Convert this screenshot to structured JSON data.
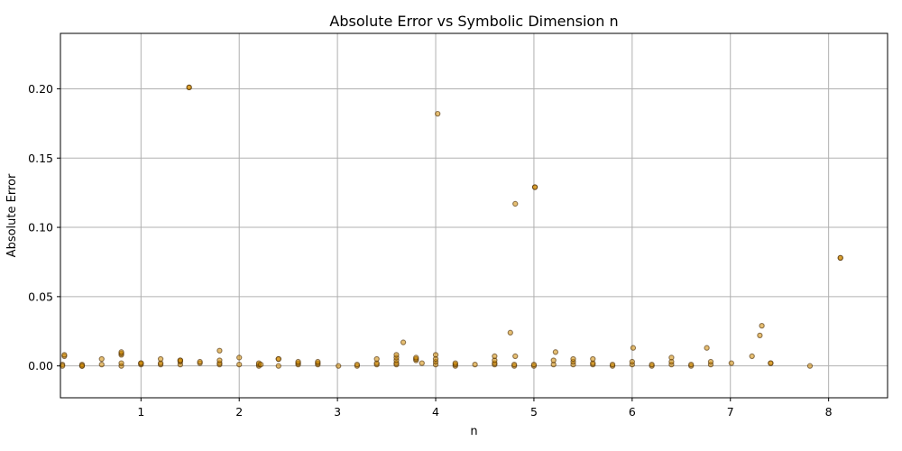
{
  "chart_data": {
    "type": "scatter",
    "title": "Absolute Error vs Symbolic Dimension n",
    "xlabel": "n",
    "ylabel": "Absolute Error",
    "xlim": [
      0.18,
      8.6
    ],
    "ylim": [
      -0.023,
      0.24
    ],
    "x_ticks": [
      1,
      2,
      3,
      4,
      5,
      6,
      7,
      8
    ],
    "x_tick_labels": [
      "1",
      "2",
      "3",
      "4",
      "5",
      "6",
      "7",
      "8"
    ],
    "y_ticks": [
      0.0,
      0.05,
      0.1,
      0.15,
      0.2
    ],
    "y_tick_labels": [
      "0.00",
      "0.05",
      "0.10",
      "0.15",
      "0.20"
    ],
    "grid": true,
    "marker_color": "#d28a00",
    "marker_edge_color": "#4a2a00",
    "series": [
      {
        "points": [
          [
            0.2,
            0.001
          ],
          [
            0.2,
            0.0
          ],
          [
            0.22,
            0.007
          ],
          [
            0.22,
            0.008
          ],
          [
            0.4,
            0.0
          ],
          [
            0.4,
            0.001
          ],
          [
            0.4,
            0.0
          ],
          [
            0.6,
            0.001
          ],
          [
            0.6,
            0.005
          ],
          [
            0.8,
            0.0
          ],
          [
            0.8,
            0.002
          ],
          [
            0.8,
            0.008
          ],
          [
            0.8,
            0.009
          ],
          [
            0.8,
            0.01
          ],
          [
            1.0,
            0.001
          ],
          [
            1.0,
            0.002
          ],
          [
            1.0,
            0.002
          ],
          [
            1.2,
            0.001
          ],
          [
            1.2,
            0.002
          ],
          [
            1.2,
            0.005
          ],
          [
            1.4,
            0.001
          ],
          [
            1.4,
            0.003
          ],
          [
            1.4,
            0.004
          ],
          [
            1.4,
            0.004
          ],
          [
            1.49,
            0.201
          ],
          [
            1.49,
            0.201
          ],
          [
            1.6,
            0.002
          ],
          [
            1.6,
            0.003
          ],
          [
            1.8,
            0.001
          ],
          [
            1.8,
            0.002
          ],
          [
            1.8,
            0.004
          ],
          [
            1.8,
            0.011
          ],
          [
            2.0,
            0.001
          ],
          [
            2.0,
            0.006
          ],
          [
            2.2,
            0.0
          ],
          [
            2.2,
            0.001
          ],
          [
            2.2,
            0.002
          ],
          [
            2.22,
            0.001
          ],
          [
            2.4,
            0.0
          ],
          [
            2.4,
            0.005
          ],
          [
            2.4,
            0.005
          ],
          [
            2.6,
            0.001
          ],
          [
            2.6,
            0.002
          ],
          [
            2.6,
            0.003
          ],
          [
            2.8,
            0.001
          ],
          [
            2.8,
            0.002
          ],
          [
            2.8,
            0.003
          ],
          [
            3.01,
            0.0
          ],
          [
            3.2,
            0.0
          ],
          [
            3.2,
            0.001
          ],
          [
            3.4,
            0.001
          ],
          [
            3.4,
            0.002
          ],
          [
            3.4,
            0.005
          ],
          [
            3.6,
            0.001
          ],
          [
            3.6,
            0.002
          ],
          [
            3.6,
            0.004
          ],
          [
            3.6,
            0.006
          ],
          [
            3.6,
            0.008
          ],
          [
            3.67,
            0.017
          ],
          [
            3.8,
            0.004
          ],
          [
            3.8,
            0.005
          ],
          [
            3.8,
            0.006
          ],
          [
            3.86,
            0.002
          ],
          [
            4.0,
            0.001
          ],
          [
            4.0,
            0.003
          ],
          [
            4.0,
            0.005
          ],
          [
            4.0,
            0.008
          ],
          [
            4.02,
            0.182
          ],
          [
            4.2,
            0.0
          ],
          [
            4.2,
            0.001
          ],
          [
            4.2,
            0.002
          ],
          [
            4.4,
            0.001
          ],
          [
            4.6,
            0.001
          ],
          [
            4.6,
            0.002
          ],
          [
            4.6,
            0.004
          ],
          [
            4.6,
            0.007
          ],
          [
            4.76,
            0.024
          ],
          [
            4.8,
            0.0
          ],
          [
            4.8,
            0.001
          ],
          [
            4.81,
            0.007
          ],
          [
            4.81,
            0.117
          ],
          [
            5.0,
            0.0
          ],
          [
            5.0,
            0.001
          ],
          [
            5.01,
            0.129
          ],
          [
            5.01,
            0.129
          ],
          [
            5.2,
            0.001
          ],
          [
            5.2,
            0.004
          ],
          [
            5.22,
            0.01
          ],
          [
            5.4,
            0.001
          ],
          [
            5.4,
            0.003
          ],
          [
            5.4,
            0.005
          ],
          [
            5.6,
            0.001
          ],
          [
            5.6,
            0.002
          ],
          [
            5.6,
            0.005
          ],
          [
            5.8,
            0.0
          ],
          [
            5.8,
            0.001
          ],
          [
            6.0,
            0.001
          ],
          [
            6.0,
            0.003
          ],
          [
            6.01,
            0.013
          ],
          [
            6.2,
            0.0
          ],
          [
            6.2,
            0.001
          ],
          [
            6.4,
            0.001
          ],
          [
            6.4,
            0.003
          ],
          [
            6.4,
            0.006
          ],
          [
            6.6,
            0.0
          ],
          [
            6.6,
            0.001
          ],
          [
            6.76,
            0.013
          ],
          [
            6.8,
            0.001
          ],
          [
            6.8,
            0.003
          ],
          [
            7.01,
            0.002
          ],
          [
            7.22,
            0.007
          ],
          [
            7.3,
            0.022
          ],
          [
            7.32,
            0.029
          ],
          [
            7.41,
            0.002
          ],
          [
            7.41,
            0.002
          ],
          [
            7.81,
            0.0
          ],
          [
            8.12,
            0.078
          ],
          [
            8.12,
            0.078
          ]
        ]
      }
    ]
  }
}
